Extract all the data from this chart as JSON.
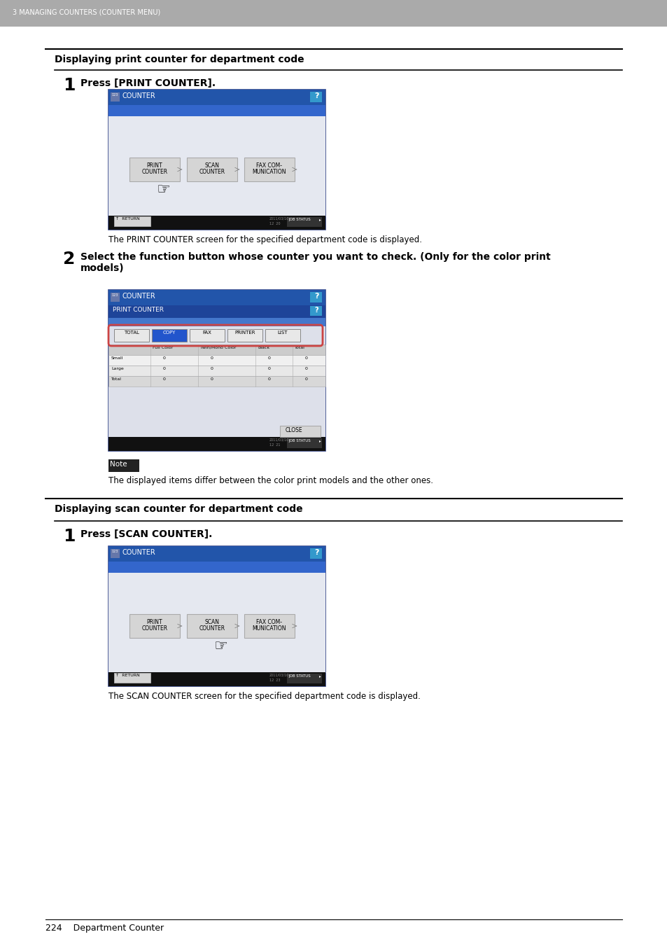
{
  "page_bg": "#ffffff",
  "header_bg": "#aaaaaa",
  "header_text": "3 MANAGING COUNTERS (COUNTER MENU)",
  "header_text_color": "#ffffff",
  "section1_title": "Displaying print counter for department code",
  "section2_title": "Displaying scan counter for department code",
  "step1_text": "Press [PRINT COUNTER].",
  "step2_text": "Select the function button whose counter you want to check. (Only for the color print\nmodels)",
  "step3_text": "Press [SCAN COUNTER].",
  "note_text": "The displayed items differ between the color print models and the other ones.",
  "desc1_text": "The PRINT COUNTER screen for the specified department code is displayed.",
  "desc2_text": "The SCAN COUNTER screen for the specified department code is displayed.",
  "footer_text": "224    Department Counter",
  "scr_title_blue": "#2255aa",
  "scr_sub_blue": "#3366cc",
  "scr_bar_blue": "#4477cc",
  "scr_cyan": "#3399cc",
  "scr_bg_light": "#e8eaf0",
  "scr_bg_mid": "#dde0e8",
  "scr_status_bg": "#111111",
  "btn_bg": "#d5d5d5",
  "btn_border": "#aaaaaa",
  "copy_btn_blue": "#2255cc",
  "highlight_red": "#cc4444",
  "note_bg": "#222222",
  "table_hdr_bg": "#cccccc",
  "table_row1_bg": "#f0f0f0",
  "table_row2_bg": "#e8e8e8",
  "table_total_bg": "#d8d8d8"
}
